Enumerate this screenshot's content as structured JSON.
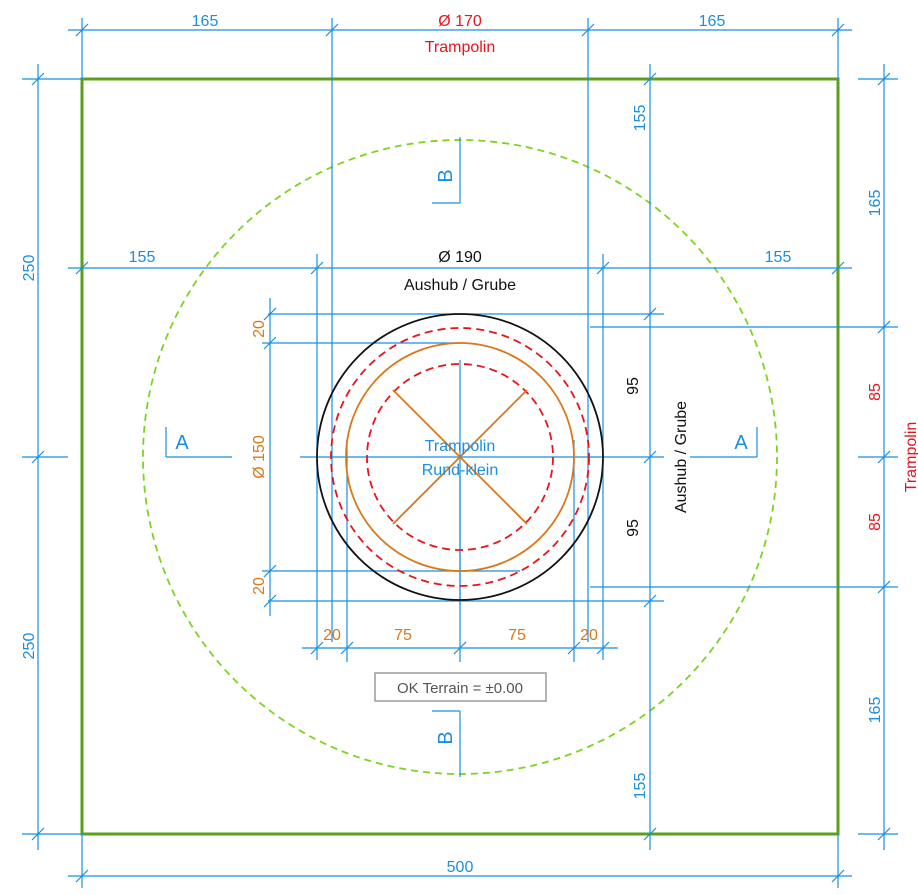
{
  "colors": {
    "dimension": "#1a8fe0",
    "plot_boundary": "#5aa01c",
    "safety_zone": "#7dd420",
    "trampoline_red": "#e8141c",
    "trampoline_frame": "#d9781a",
    "excavation": "#111111"
  },
  "top_dims": {
    "left": "165",
    "center": "Ø 170",
    "center_caption": "Trampolin",
    "right": "165"
  },
  "bottom_dim": "500",
  "left_dims": {
    "upper": "250",
    "lower": "250"
  },
  "right_dims": {
    "upper": "165",
    "red_upper": "85",
    "red_lower": "85",
    "lower": "165",
    "red_caption": "Trampolin"
  },
  "inner_dims": {
    "aushub_left": "155",
    "aushub_right": "155",
    "aushub_diameter": "Ø 190",
    "aushub_caption": "Aushub / Grube",
    "vertical_top": "155",
    "vertical_bottom": "155",
    "half_upper": "95",
    "half_lower": "95",
    "vertical_caption": "Aushub / Grube"
  },
  "orange_dims": {
    "offset_top": "20",
    "diameter": "Ø 150",
    "offset_bottom": "20",
    "bottom_left_offset": "20",
    "bottom_left_radius": "75",
    "bottom_right_radius": "75",
    "bottom_right_offset": "20"
  },
  "section_marks": {
    "a_left": "A",
    "a_right": "A",
    "b_top": "B",
    "b_bottom": "B"
  },
  "trampoline_label": {
    "line1": "Trampolin",
    "line2": "Rund-klein"
  },
  "terrain_label": "OK Terrain = ±0.00"
}
